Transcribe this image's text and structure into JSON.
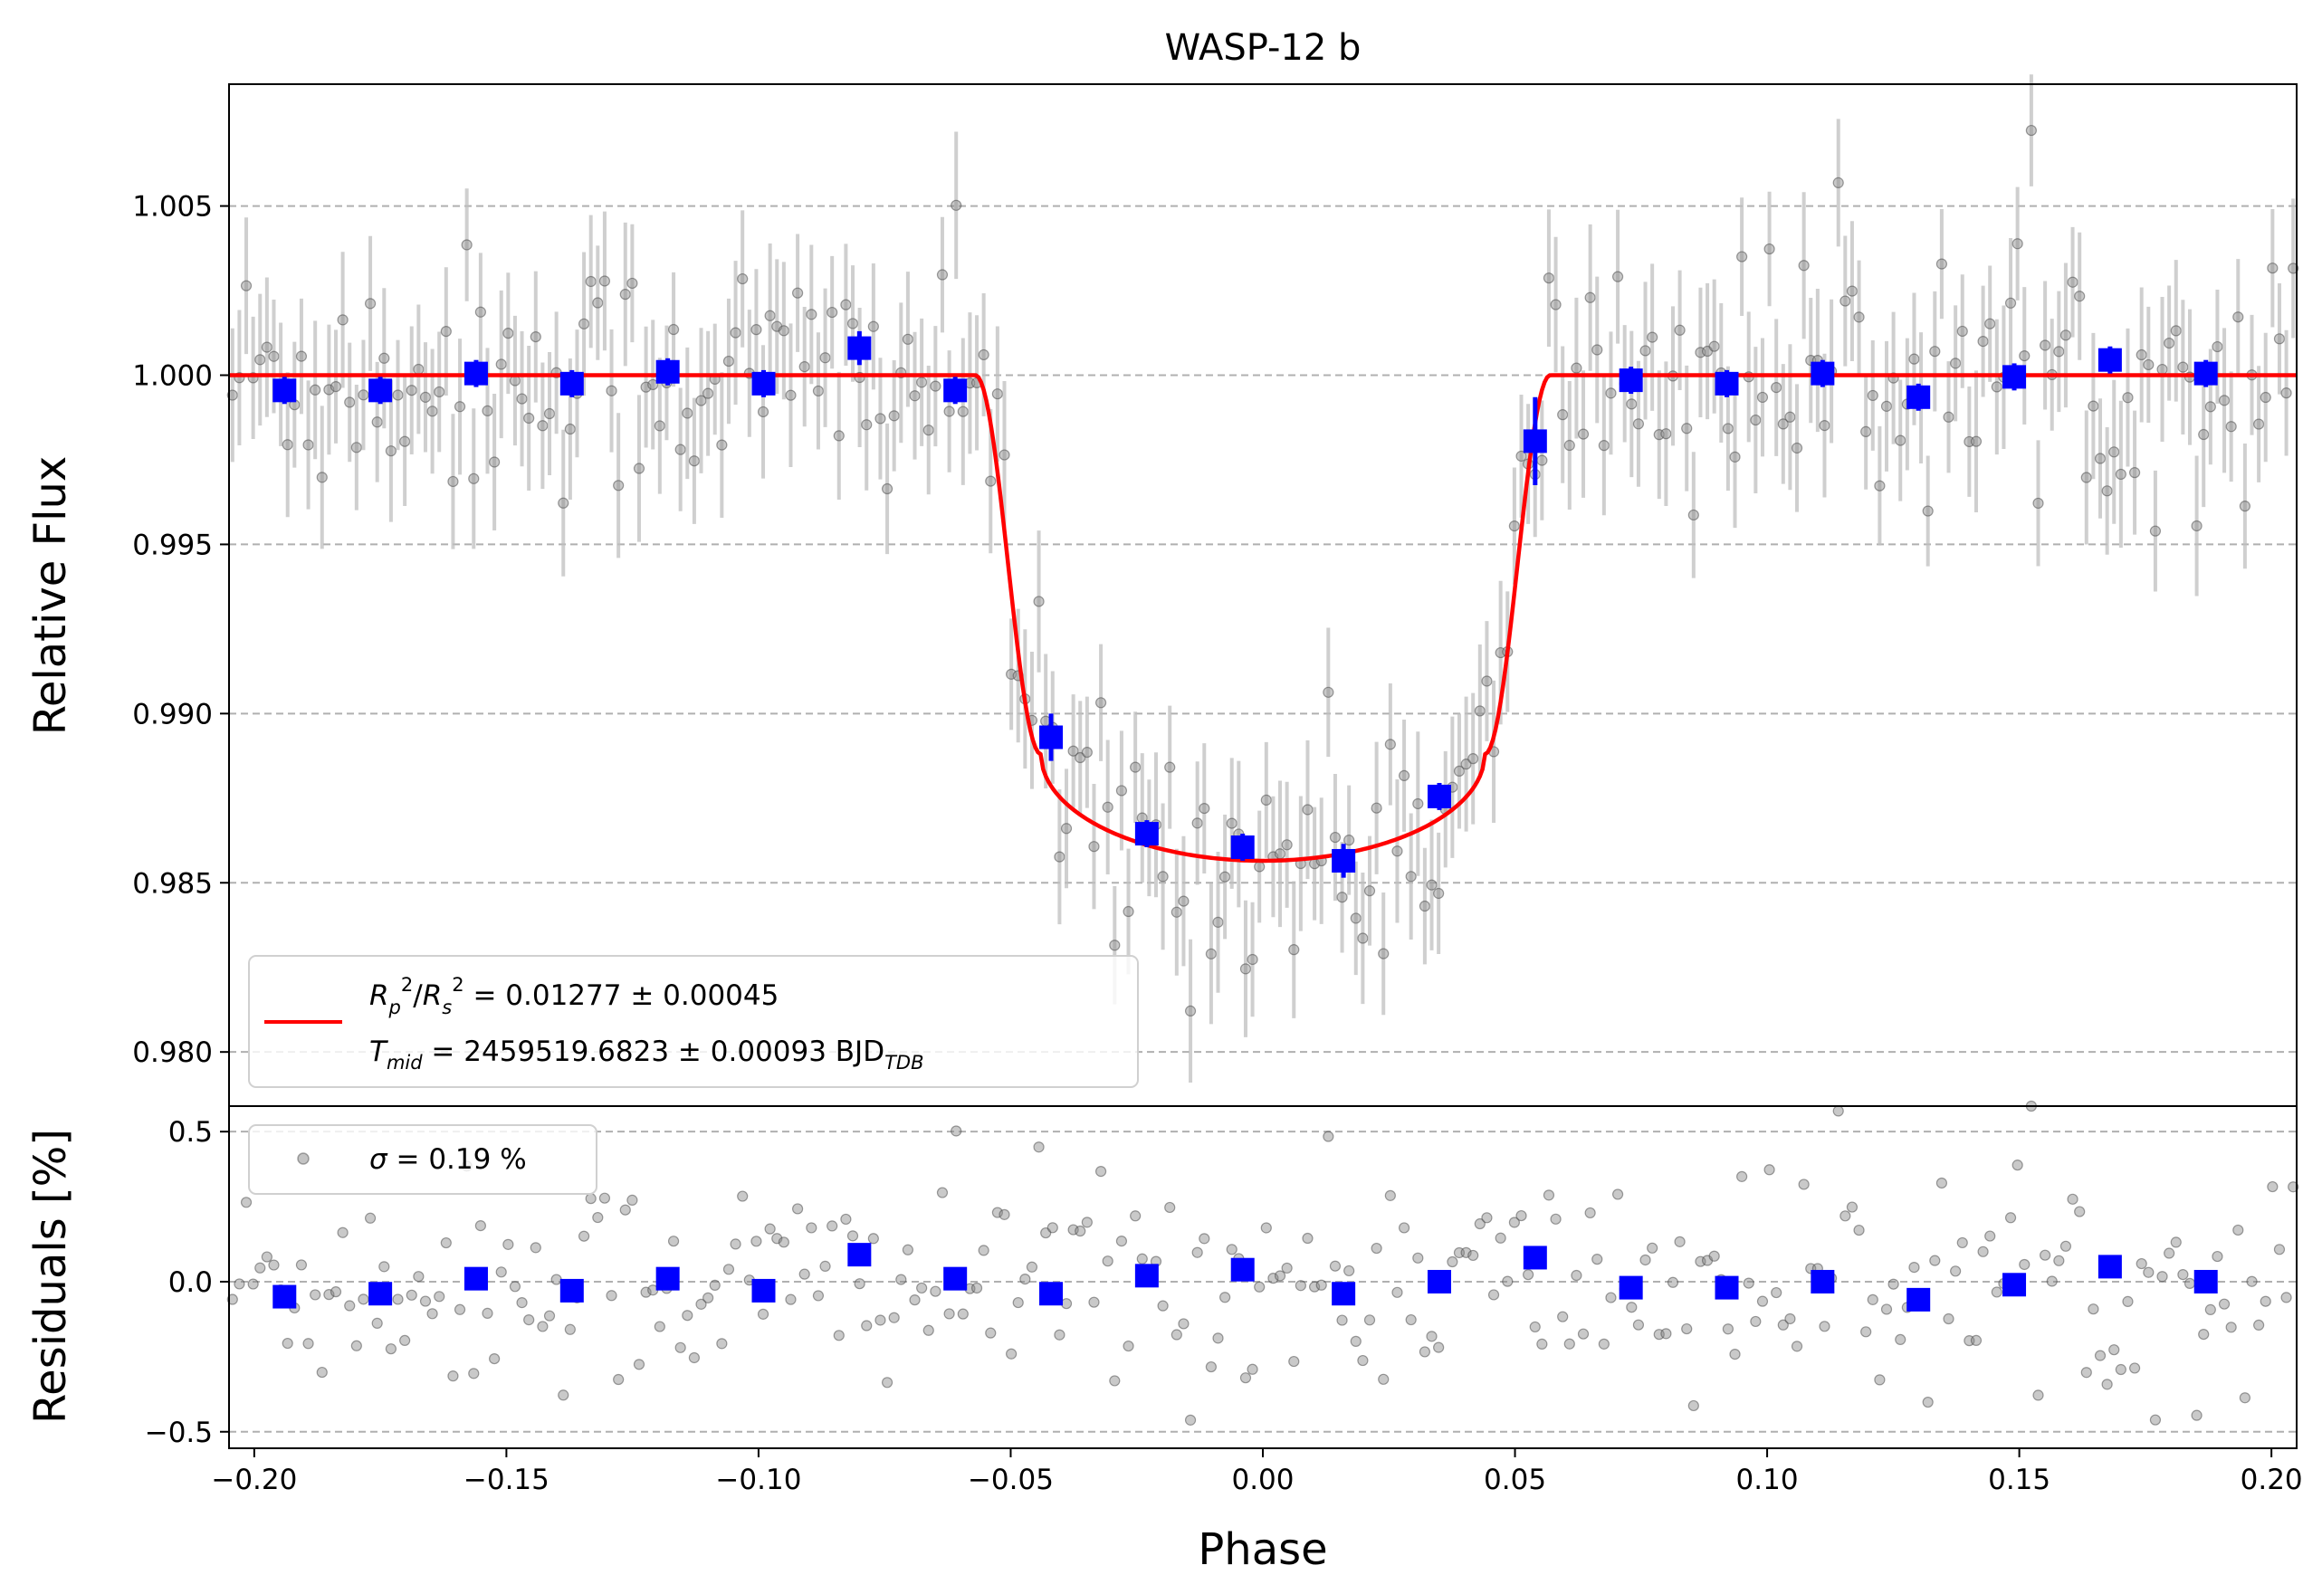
{
  "chart_data": [
    {
      "type": "scatter",
      "panel": "main",
      "title": "WASP-12 b",
      "ylabel": "Relative Flux",
      "xlabel": "",
      "xlim": [
        -0.205,
        0.205
      ],
      "ylim": [
        0.9784,
        1.0086
      ],
      "grid": "horizontal dashed",
      "yticks": [
        0.98,
        0.985,
        0.99,
        0.995,
        1.0,
        1.005
      ],
      "ytick_labels": [
        "0.980",
        "0.985",
        "0.990",
        "0.995",
        "1.000",
        "1.005"
      ],
      "binned": {
        "name": "binned data",
        "x": [
          -0.194,
          -0.175,
          -0.156,
          -0.137,
          -0.118,
          -0.099,
          -0.08,
          -0.061,
          -0.042,
          -0.023,
          -0.004,
          0.016,
          0.035,
          0.054,
          0.073,
          0.092,
          0.111,
          0.13,
          0.149,
          0.168,
          0.187
        ],
        "y": [
          0.99955,
          0.99955,
          1.00005,
          0.99975,
          1.0001,
          0.99975,
          1.0008,
          0.99955,
          0.9893,
          0.98645,
          0.98605,
          0.98565,
          0.98755,
          0.99805,
          0.99985,
          0.99975,
          1.00005,
          0.99935,
          0.99995,
          1.00045,
          1.00005
        ],
        "err": [
          0.0004,
          0.0004,
          0.0004,
          0.0004,
          0.0004,
          0.0004,
          0.0005,
          0.0004,
          0.0007,
          0.0004,
          0.0004,
          0.0005,
          0.0004,
          0.0013,
          0.0004,
          0.0004,
          0.0004,
          0.0004,
          0.0004,
          0.0004,
          0.0004
        ]
      },
      "model": {
        "name": "transit model",
        "t14_half": 0.057,
        "t23_half": 0.044,
        "limb_depth": 0.0115,
        "out_flux": 1.0,
        "center_flux": 0.98565,
        "edge_flux": 0.9888
      },
      "raw_count": 300,
      "raw_scatter": 0.0019,
      "raw_err": 0.0019,
      "legend": {
        "position": "lower-left",
        "line1": "R_p²/R_s² = 0.01277 ± 0.00045",
        "line1_parts": {
          "rp": "R",
          "rp_sub": "p",
          "sup": "2",
          "rs": "R",
          "rs_sub": "s",
          "value": " = 0.01277 ± 0.00045"
        },
        "line2_parts": {
          "t": "T",
          "t_sub": "mid",
          "value": " = 2459519.6823 ± 0.00093 BJD",
          "bjd_sub": "TDB"
        }
      }
    },
    {
      "type": "scatter",
      "panel": "residuals",
      "xlabel": "Phase",
      "ylabel": "Residuals [%]",
      "xlim": [
        -0.205,
        0.205
      ],
      "ylim": [
        -0.555,
        0.585
      ],
      "xticks": [
        -0.2,
        -0.15,
        -0.1,
        -0.05,
        0.0,
        0.05,
        0.1,
        0.15,
        0.2
      ],
      "xtick_labels": [
        "−0.20",
        "−0.15",
        "−0.10",
        "−0.05",
        "0.00",
        "0.05",
        "0.10",
        "0.15",
        "0.20"
      ],
      "yticks": [
        -0.5,
        0.0,
        0.5
      ],
      "ytick_labels": [
        "−0.5",
        "0.0",
        "0.5"
      ],
      "binned_residuals": [
        -0.05,
        -0.04,
        0.01,
        -0.03,
        0.01,
        -0.03,
        0.09,
        0.01,
        -0.04,
        0.02,
        0.04,
        -0.04,
        0.0,
        0.08,
        -0.02,
        -0.02,
        0.0,
        -0.06,
        -0.01,
        0.05,
        0.0
      ],
      "legend": {
        "position": "top-left",
        "sigma": "σ",
        "label": " = 0.19 %"
      }
    }
  ],
  "colors": {
    "model": "#ff0000",
    "binned": "#0000ff",
    "raw": "#888888",
    "grid": "#b0b0b0"
  }
}
